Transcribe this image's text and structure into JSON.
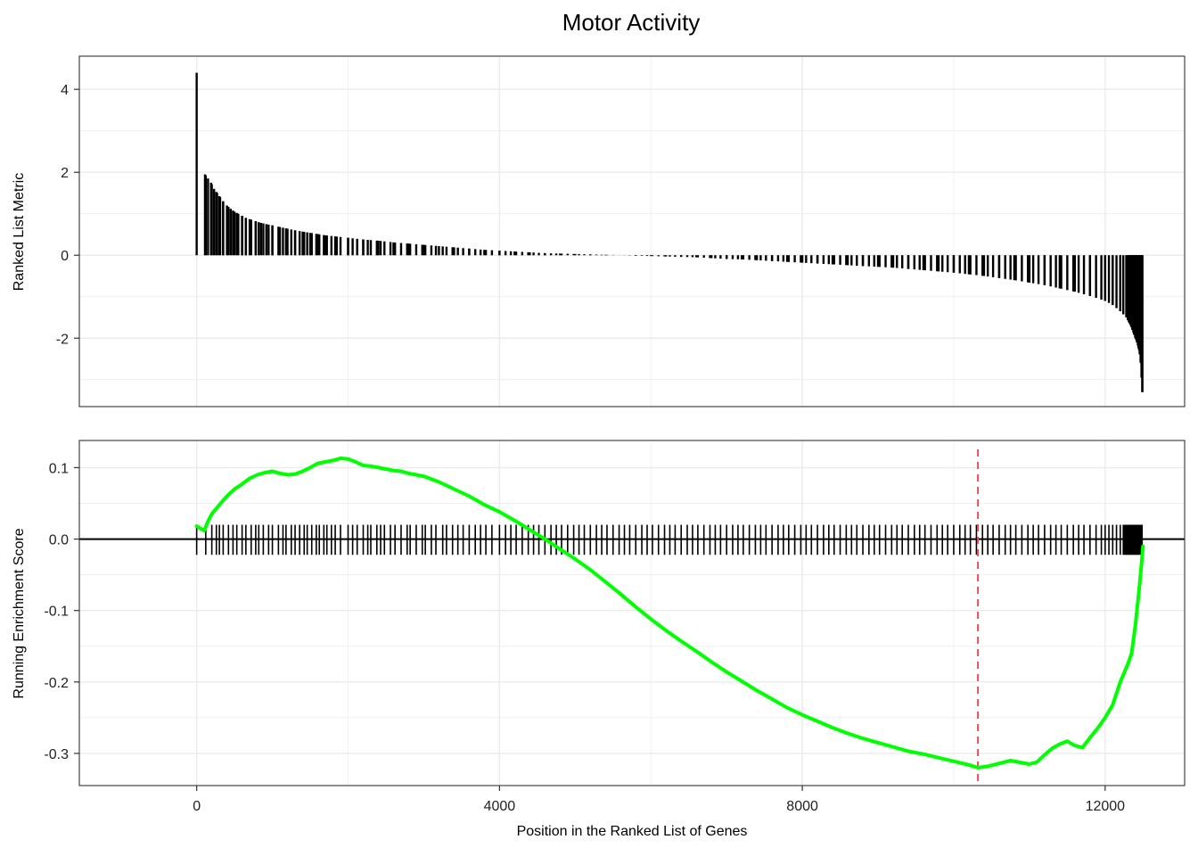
{
  "title": "Motor Activity",
  "colors": {
    "bars": "#000000",
    "running_score": "#00ff00",
    "peak_line": "#e0505a",
    "grid": "#ebebeb",
    "panel_border": "#333333"
  },
  "chart_data": [
    {
      "type": "bar",
      "panel": "top",
      "ylabel": "Ranked List Metric",
      "xlim": [
        -1550,
        13050
      ],
      "ylim": [
        -3.65,
        4.8
      ],
      "y_ticks": [
        "4",
        "2",
        "0",
        "-2"
      ],
      "y_tick_values": [
        4,
        2,
        0,
        -2
      ],
      "x_grid": [
        0,
        4000,
        8000,
        12000
      ],
      "grid": true,
      "n_genes": 12500,
      "gene_positions": [
        0,
        110,
        150,
        190,
        230,
        270,
        310,
        350,
        400,
        450,
        500,
        550,
        600,
        650,
        700,
        780,
        850,
        920,
        1000,
        1100,
        1200,
        1300,
        1400,
        1500,
        1600,
        1700,
        1850,
        2000,
        2200,
        2400,
        2600,
        2800,
        3000,
        3200,
        3400,
        3600,
        3800,
        4000,
        4200,
        4400,
        4600,
        4800,
        5000,
        5200,
        5400,
        5600,
        5800,
        6000,
        6200,
        6400,
        6600,
        6800,
        7000,
        7200,
        7400,
        7600,
        7800,
        8000,
        8200,
        8400,
        8600,
        8800,
        9000,
        9200,
        9400,
        9600,
        9800,
        10000,
        10200,
        10400,
        10600,
        10800,
        11000,
        11200,
        11400,
        11600,
        11800,
        12000,
        12100,
        12200,
        12280,
        12340,
        12380,
        12420,
        12450,
        12470,
        12490
      ],
      "metric_values": [
        4.4,
        1.95,
        1.85,
        1.75,
        1.6,
        1.5,
        1.4,
        1.3,
        1.2,
        1.12,
        1.05,
        1.0,
        0.95,
        0.9,
        0.87,
        0.82,
        0.78,
        0.75,
        0.72,
        0.68,
        0.64,
        0.6,
        0.57,
        0.54,
        0.51,
        0.48,
        0.45,
        0.42,
        0.38,
        0.35,
        0.31,
        0.28,
        0.25,
        0.22,
        0.19,
        0.16,
        0.13,
        0.11,
        0.09,
        0.07,
        0.05,
        0.04,
        0.03,
        0.02,
        0.01,
        0.0,
        -0.01,
        -0.02,
        -0.03,
        -0.04,
        -0.05,
        -0.07,
        -0.09,
        -0.1,
        -0.12,
        -0.14,
        -0.16,
        -0.18,
        -0.2,
        -0.22,
        -0.24,
        -0.26,
        -0.28,
        -0.3,
        -0.33,
        -0.36,
        -0.39,
        -0.42,
        -0.46,
        -0.5,
        -0.55,
        -0.6,
        -0.66,
        -0.72,
        -0.8,
        -0.88,
        -0.98,
        -1.1,
        -1.2,
        -1.35,
        -1.5,
        -1.7,
        -1.9,
        -2.1,
        -2.3,
        -2.6,
        -3.3
      ]
    },
    {
      "type": "line",
      "panel": "bottom",
      "xlabel": "Position in the Ranked List of Genes",
      "ylabel": "Running Enrichment Score",
      "xlim": [
        -1550,
        13050
      ],
      "ylim": [
        -0.345,
        0.138
      ],
      "x_ticks": [
        "0",
        "4000",
        "8000",
        "12000"
      ],
      "x_tick_values": [
        0,
        4000,
        8000,
        12000
      ],
      "y_ticks": [
        "0.1",
        "0.0",
        "-0.1",
        "-0.2",
        "-0.3"
      ],
      "y_tick_values": [
        0.1,
        0.0,
        -0.1,
        -0.2,
        -0.3
      ],
      "grid": true,
      "hline": 0,
      "peak_x": 10320,
      "hit_positions": [
        0,
        120,
        200,
        260,
        300,
        350,
        420,
        480,
        530,
        600,
        650,
        720,
        780,
        820,
        880,
        950,
        1000,
        1080,
        1140,
        1180,
        1250,
        1300,
        1360,
        1420,
        1460,
        1520,
        1580,
        1620,
        1680,
        1720,
        1780,
        1830,
        1900,
        2000,
        2060,
        2120,
        2200,
        2260,
        2300,
        2380,
        2430,
        2480,
        2560,
        2620,
        2700,
        2780,
        2820,
        2900,
        2980,
        3020,
        3100,
        3160,
        3250,
        3300,
        3380,
        3450,
        3520,
        3600,
        3680,
        3750,
        3820,
        3900,
        4000,
        4080,
        4150,
        4220,
        4300,
        4380,
        4450,
        4520,
        4600,
        4680,
        4750,
        4820,
        4900,
        4980,
        5050,
        5120,
        5200,
        5280,
        5350,
        5420,
        5500,
        5580,
        5650,
        5720,
        5800,
        5880,
        5950,
        6020,
        6100,
        6180,
        6250,
        6320,
        6400,
        6480,
        6550,
        6620,
        6700,
        6780,
        6850,
        6920,
        7000,
        7080,
        7150,
        7220,
        7300,
        7380,
        7450,
        7520,
        7600,
        7680,
        7750,
        7820,
        7900,
        7980,
        8050,
        8120,
        8200,
        8280,
        8350,
        8420,
        8500,
        8580,
        8650,
        8720,
        8800,
        8880,
        8950,
        9020,
        9100,
        9180,
        9250,
        9320,
        9400,
        9480,
        9550,
        9620,
        9700,
        9780,
        9850,
        9920,
        10000,
        10080,
        10150,
        10220,
        10300,
        10380,
        10450,
        10520,
        10600,
        10680,
        10750,
        10820,
        10900,
        10980,
        11050,
        11120,
        11200,
        11280,
        11350,
        11420,
        11500,
        11580,
        11650,
        11720,
        11800,
        11880,
        11950,
        12000,
        12050,
        12100,
        12150,
        12200,
        12240,
        12280,
        12320,
        12360,
        12400,
        12440,
        12480
      ],
      "x": [
        0,
        50,
        100,
        150,
        200,
        300,
        400,
        500,
        600,
        700,
        800,
        900,
        1000,
        1100,
        1200,
        1300,
        1400,
        1500,
        1600,
        1700,
        1800,
        1900,
        2000,
        2100,
        2200,
        2300,
        2400,
        2500,
        2600,
        2700,
        2800,
        2900,
        3000,
        3100,
        3200,
        3300,
        3400,
        3500,
        3600,
        3700,
        3800,
        3900,
        4000,
        4200,
        4400,
        4600,
        4800,
        5000,
        5200,
        5400,
        5600,
        5800,
        6000,
        6200,
        6400,
        6600,
        6800,
        7000,
        7200,
        7400,
        7600,
        7800,
        8000,
        8200,
        8400,
        8600,
        8800,
        9000,
        9200,
        9400,
        9600,
        9800,
        10000,
        10200,
        10320,
        10450,
        10600,
        10750,
        10900,
        11000,
        11100,
        11200,
        11300,
        11400,
        11500,
        11600,
        11700,
        11800,
        11900,
        12000,
        12100,
        12200,
        12300,
        12350,
        12400,
        12450,
        12480,
        12500
      ],
      "y": [
        0.018,
        0.015,
        0.012,
        0.025,
        0.035,
        0.048,
        0.06,
        0.07,
        0.077,
        0.085,
        0.09,
        0.093,
        0.095,
        0.092,
        0.09,
        0.091,
        0.095,
        0.1,
        0.106,
        0.108,
        0.11,
        0.113,
        0.112,
        0.108,
        0.103,
        0.102,
        0.1,
        0.098,
        0.096,
        0.095,
        0.092,
        0.09,
        0.088,
        0.084,
        0.08,
        0.075,
        0.07,
        0.065,
        0.06,
        0.054,
        0.048,
        0.043,
        0.038,
        0.026,
        0.013,
        0.0,
        -0.014,
        -0.028,
        -0.043,
        -0.06,
        -0.077,
        -0.095,
        -0.112,
        -0.128,
        -0.143,
        -0.157,
        -0.172,
        -0.186,
        -0.199,
        -0.212,
        -0.224,
        -0.236,
        -0.246,
        -0.255,
        -0.264,
        -0.272,
        -0.279,
        -0.285,
        -0.291,
        -0.297,
        -0.301,
        -0.306,
        -0.311,
        -0.316,
        -0.32,
        -0.318,
        -0.314,
        -0.31,
        -0.313,
        -0.315,
        -0.312,
        -0.302,
        -0.293,
        -0.287,
        -0.283,
        -0.289,
        -0.292,
        -0.278,
        -0.265,
        -0.25,
        -0.232,
        -0.2,
        -0.175,
        -0.16,
        -0.12,
        -0.07,
        -0.035,
        -0.01
      ]
    }
  ]
}
